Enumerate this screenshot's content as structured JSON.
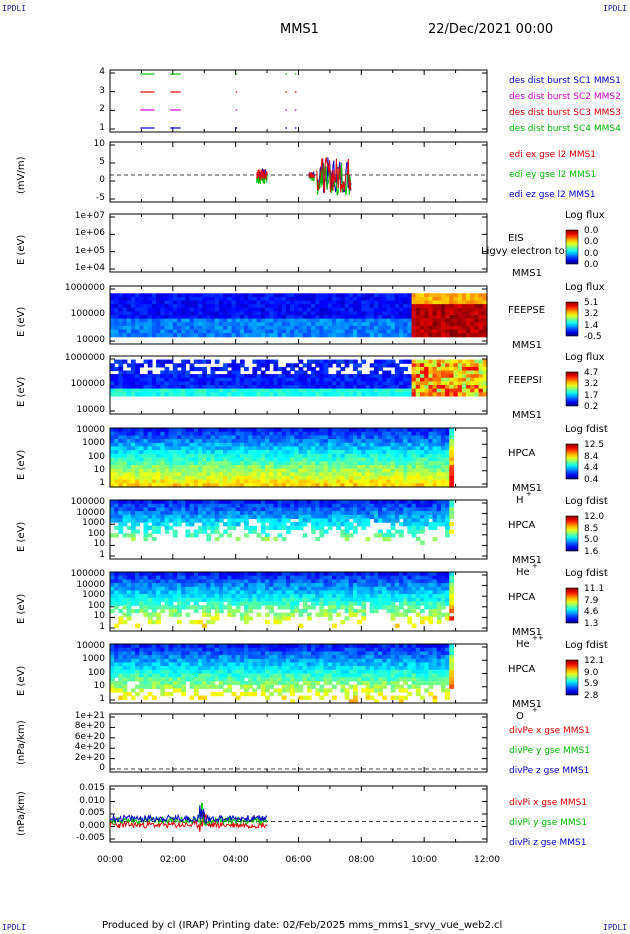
{
  "corners": {
    "tl": "IPDLI",
    "tr": "IPDLI",
    "bl": "IPDLI",
    "br": "IPDLI"
  },
  "header": {
    "spacecraft": "MMS1",
    "date": "22/Dec/2021 00:00"
  },
  "footer": "Produced by cl (IRAP)    Printing date: 02/Feb/2025    mms_mms1_srvy_vue_web2.cl",
  "colors": {
    "red": "#e00000",
    "green": "#00c000",
    "blue": "#0000c8",
    "magenta": "#d000d0",
    "gold": "#b8860b"
  },
  "chart_data": [
    {
      "type": "line",
      "id": "burst",
      "xlim": [
        "00:00",
        "12:00"
      ],
      "ylim": [
        1,
        4
      ],
      "yticks": [
        "4",
        "3",
        "2",
        "1"
      ],
      "series": [
        {
          "name": "des dist burst SC1 MMS1",
          "value": 4,
          "color": "green"
        },
        {
          "name": "des dist burst SC2 MMS2",
          "value": 3,
          "color": "red"
        },
        {
          "name": "des dist burst SC3 MMS3",
          "value": 2,
          "color": "magenta"
        },
        {
          "name": "des dist burst SC4 MMS4",
          "value": 1,
          "color": "blue"
        }
      ],
      "legend_colors": [
        "blue",
        "magenta",
        "red",
        "green"
      ],
      "segments": [
        [
          "00:58",
          "01:25"
        ],
        [
          "01:55",
          "02:15"
        ],
        [
          "04:00",
          "04:02"
        ],
        [
          "05:35",
          "05:38"
        ],
        [
          "05:53",
          "05:56"
        ]
      ]
    },
    {
      "type": "line",
      "id": "edi",
      "ylabel": "(mV/m)",
      "ylim": [
        -8,
        10
      ],
      "yticks": [
        "10",
        "5",
        "0",
        "-5"
      ],
      "series": [
        {
          "name": "edi ex gse l2 MMS1",
          "color": "red"
        },
        {
          "name": "edi ey gse l2 MMS1",
          "color": "green"
        },
        {
          "name": "edi ez gse l2 MMS1",
          "color": "blue"
        }
      ]
    },
    {
      "type": "heatmap",
      "id": "eis",
      "ylabel": "E (eV)",
      "yticks": [
        "1e+07",
        "1e+06",
        "1e+05",
        "1e+04"
      ],
      "inst": [
        "EIS",
        "MMS1"
      ],
      "overlay": "Ligvy electron to",
      "cb_title": "Log flux",
      "cb_vals": [
        "0.0",
        "0.0",
        "0.0",
        "0.0"
      ]
    },
    {
      "type": "heatmap",
      "id": "feepse",
      "ylabel": "E (eV)",
      "yticks": [
        "1000000",
        "100000",
        "10000"
      ],
      "inst": [
        "FEEPSE",
        "MMS1"
      ],
      "cb_title": "Log flux",
      "cb_vals": [
        "5.1",
        "3.2",
        "1.4",
        "-0.5"
      ]
    },
    {
      "type": "heatmap",
      "id": "feepsi",
      "ylabel": "E (eV)",
      "yticks": [
        "1000000",
        "100000",
        "10000"
      ],
      "inst": [
        "FEEPSI",
        "MMS1"
      ],
      "cb_title": "Log flux",
      "cb_vals": [
        "4.7",
        "3.2",
        "1.7",
        "0.2"
      ]
    },
    {
      "type": "heatmap",
      "id": "hpca_h",
      "ylabel": "E (eV)",
      "yticks": [
        "10000",
        "1000",
        "100",
        "10",
        "1"
      ],
      "inst": [
        "HPCA",
        "MMS1"
      ],
      "species": "H",
      "charge": "+",
      "cb_title": "Log fdist",
      "cb_vals": [
        "12.5",
        "8.4",
        "4.4",
        "0.4"
      ]
    },
    {
      "type": "heatmap",
      "id": "hpca_he",
      "ylabel": "E (eV)",
      "yticks": [
        "100000",
        "10000",
        "1000",
        "100",
        "10",
        "1"
      ],
      "inst": [
        "HPCA",
        "MMS1"
      ],
      "species": "He",
      "charge": "+",
      "cb_title": "Log fdist",
      "cb_vals": [
        "12.0",
        "8.5",
        "5.0",
        "1.6"
      ]
    },
    {
      "type": "heatmap",
      "id": "hpca_he2",
      "ylabel": "E (eV)",
      "yticks": [
        "100000",
        "10000",
        "1000",
        "100",
        "10",
        "1"
      ],
      "inst": [
        "HPCA",
        "MMS1"
      ],
      "species": "He",
      "charge": "++",
      "cb_title": "Log fdist",
      "cb_vals": [
        "11.1",
        "7.9",
        "4.6",
        "1.3"
      ]
    },
    {
      "type": "heatmap",
      "id": "hpca_o",
      "ylabel": "E (eV)",
      "yticks": [
        "10000",
        "1000",
        "100",
        "10",
        "1"
      ],
      "inst": [
        "HPCA",
        "MMS1"
      ],
      "species": "O",
      "charge": "+",
      "cb_title": "Log fdist",
      "cb_vals": [
        "12.1",
        "9.0",
        "5.9",
        "2.8"
      ]
    },
    {
      "type": "line",
      "id": "divpe",
      "ylabel": "(nPa/km)",
      "yticks": [
        "1e+21",
        "8e+20",
        "6e+20",
        "4e+20",
        "2e+20",
        "0"
      ],
      "series": [
        {
          "name": "divPe x gse MMS1",
          "color": "red"
        },
        {
          "name": "divPe y gse MMS1",
          "color": "green"
        },
        {
          "name": "divPe z gse MMS1",
          "color": "blue"
        }
      ]
    },
    {
      "type": "line",
      "id": "divpi",
      "ylabel": "(nPa/km)",
      "yticks": [
        "0.015",
        "0.010",
        "0.005",
        "0.000",
        "-0.005"
      ],
      "ylim": [
        -0.008,
        0.015
      ],
      "series": [
        {
          "name": "divPi x gse MMS1",
          "color": "red"
        },
        {
          "name": "divPi y gse MMS1",
          "color": "green"
        },
        {
          "name": "divPi z gse MMS1",
          "color": "blue"
        }
      ]
    }
  ],
  "xticks": [
    "00:00",
    "02:00",
    "04:00",
    "06:00",
    "08:00",
    "10:00",
    "12:00"
  ]
}
